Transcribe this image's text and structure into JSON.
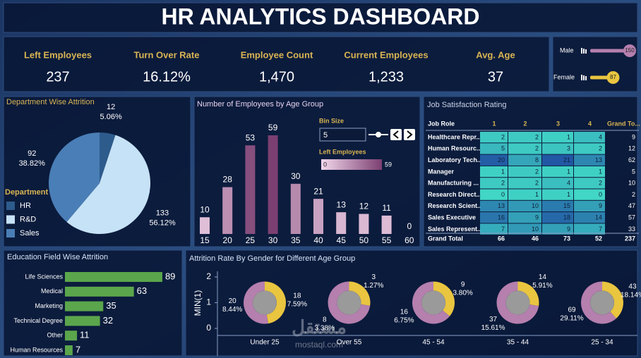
{
  "title": "HR ANALYTICS DASHBOARD",
  "kpis": [
    {
      "label": "Left Employees",
      "value": "237"
    },
    {
      "label": "Turn Over Rate",
      "value": "16.12%"
    },
    {
      "label": "Employee Count",
      "value": "1,470"
    },
    {
      "label": "Current Employees",
      "value": "1,233"
    },
    {
      "label": "Avg. Age",
      "value": "37"
    }
  ],
  "table": {
    "title": "Job Satisfaction Rating",
    "columns": [
      "Job Role",
      "1",
      "2",
      "3",
      "4",
      "Grand To..."
    ],
    "rows": [
      [
        "Healthcare Repr...",
        2,
        2,
        1,
        4,
        9
      ],
      [
        "Human Resourc...",
        5,
        2,
        3,
        2,
        12
      ],
      [
        "Laboratory Tech...",
        20,
        8,
        21,
        13,
        62
      ],
      [
        "Manager",
        1,
        2,
        1,
        1,
        5
      ],
      [
        "Manufacturing ...",
        2,
        2,
        4,
        2,
        10
      ],
      [
        "Research Direct...",
        0,
        1,
        1,
        0,
        2
      ],
      [
        "Research Scient...",
        13,
        10,
        15,
        9,
        47
      ],
      [
        "Sales Executive",
        16,
        9,
        18,
        14,
        57
      ],
      [
        "Sales Represent...",
        7,
        10,
        9,
        7,
        33
      ]
    ],
    "total": [
      "Grand Total",
      66,
      46,
      73,
      52,
      237
    ]
  },
  "watermark": [
    "مستقل",
    "mostaql.com"
  ],
  "chart_data": [
    {
      "type": "bar",
      "orientation": "horizontal",
      "categories": [
        "Male",
        "Female"
      ],
      "values": [
        150,
        87
      ],
      "colors": [
        "#b57fae",
        "#e9c540"
      ],
      "xlim": [
        0,
        150
      ]
    },
    {
      "type": "pie",
      "title": "Department Wise Attrition",
      "legend_title": "Department",
      "categories": [
        "HR",
        "R&D",
        "Sales"
      ],
      "values": [
        12,
        133,
        92
      ],
      "percents": [
        5.06,
        56.12,
        38.82
      ],
      "percent_labels": [
        "5.06%",
        "56.12%",
        "38.82%"
      ],
      "colors": [
        "#2d5b8c",
        "#c6e2f6",
        "#4a7eb6"
      ]
    },
    {
      "type": "bar",
      "title": "Number of Employees by Age Group",
      "categories": [
        "15",
        "20",
        "25",
        "30",
        "35",
        "40",
        "45",
        "50",
        "55",
        "60"
      ],
      "values": [
        10,
        28,
        53,
        59,
        30,
        21,
        13,
        12,
        11,
        0
      ],
      "ylim": [
        0,
        59
      ],
      "bin_size": {
        "label": "Bin Size",
        "value": 5
      },
      "color_scale": {
        "title": "Left Employees",
        "min": 0,
        "max": 59,
        "colors": [
          "#f3d8ec",
          "#7b3f71"
        ]
      }
    },
    {
      "type": "bar",
      "orientation": "horizontal",
      "title": "Education Field Wise Attrition",
      "categories": [
        "Life Sciences",
        "Medical",
        "Marketing",
        "Technical Degree",
        "Other",
        "Human Resources"
      ],
      "values": [
        89,
        63,
        35,
        32,
        11,
        7
      ],
      "color": "#5ba64c",
      "xlim": [
        0,
        100
      ]
    },
    {
      "type": "donut",
      "title": "Attrition Rate By Gender for Different Age Group",
      "ylabel": "MIN(1)",
      "ylim": [
        0,
        2
      ],
      "yticks": [
        0,
        1,
        2
      ],
      "categories": [
        "Under 25",
        "Over 55",
        "45 - 54",
        "35 - 44",
        "25 - 34"
      ],
      "series": [
        {
          "color": "#e9c540",
          "values": [
            18,
            3,
            9,
            14,
            43
          ],
          "percents": [
            7.59,
            1.27,
            3.8,
            5.91,
            18.14
          ],
          "percent_labels": [
            "7.59%",
            "1.27%",
            "3.80%",
            "5.91%",
            "18.14%"
          ]
        },
        {
          "color": "#b57fae",
          "values": [
            20,
            8,
            16,
            37,
            69
          ],
          "percents": [
            8.44,
            3.38,
            6.75,
            15.61,
            29.11
          ],
          "percent_labels": [
            "8.44%",
            "3.38%",
            "6.75%",
            "15.61%",
            "29.11%"
          ]
        }
      ]
    }
  ]
}
